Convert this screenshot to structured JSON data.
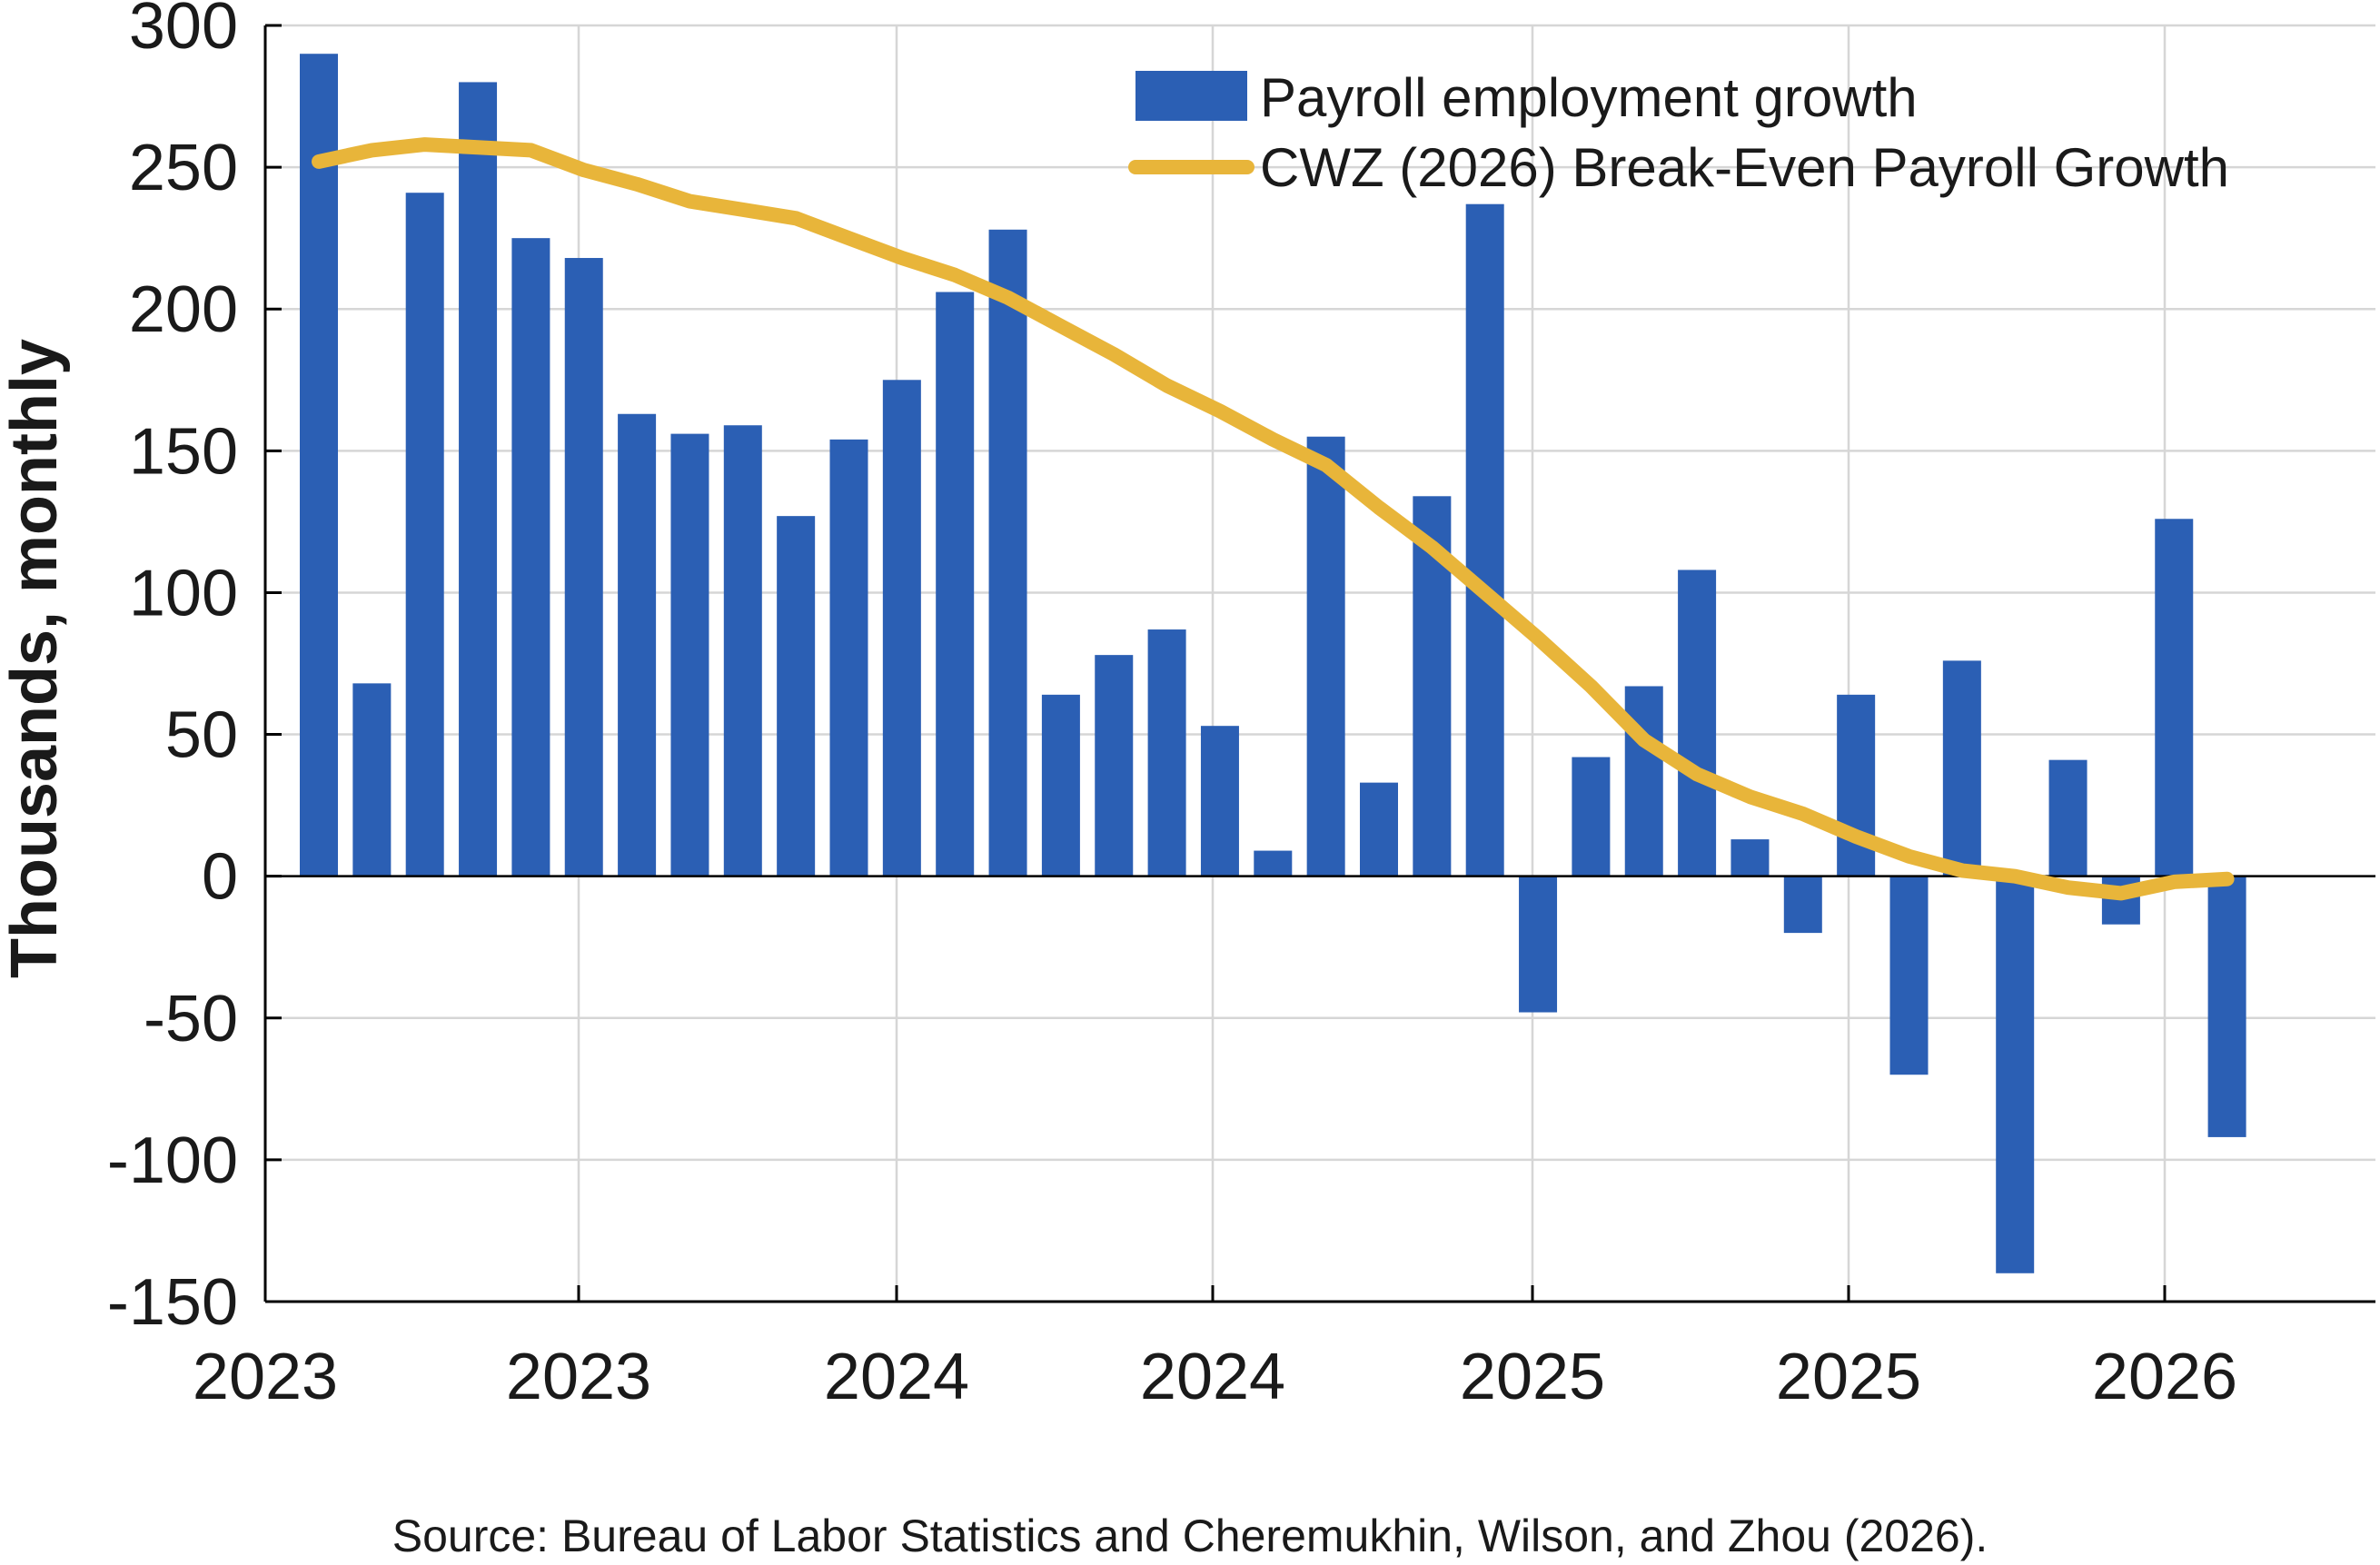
{
  "chart_data": {
    "type": "bar",
    "ylabel": "Thousands, monthly",
    "ylim": [
      -150,
      300
    ],
    "yticks": [
      -150,
      -100,
      -50,
      0,
      50,
      100,
      150,
      200,
      250,
      300
    ],
    "ytick_labels": [
      "-150",
      "-100",
      "-50",
      "0",
      "50",
      "100",
      "150",
      "200",
      "250",
      "300"
    ],
    "xtick_labels": [
      "2023",
      "2023",
      "2024",
      "2024",
      "2025",
      "2025",
      "2026"
    ],
    "grid": true,
    "legend_position": "top-right",
    "series": [
      {
        "name": "Payroll employment growth",
        "type": "bar",
        "color": "#2b5fb4",
        "values": [
          290,
          68,
          241,
          280,
          225,
          218,
          163,
          156,
          159,
          127,
          154,
          175,
          206,
          228,
          64,
          78,
          87,
          53,
          9,
          155,
          33,
          134,
          237,
          -48,
          42,
          67,
          108,
          13,
          -20,
          64,
          -70,
          76,
          -140,
          41,
          -17,
          126,
          -92
        ]
      },
      {
        "name": "CWZ (2026) Break-Even Payroll Growth",
        "type": "line",
        "color": "#e8b53a",
        "values": [
          252,
          256,
          258,
          257,
          256,
          249,
          244,
          238,
          235,
          232,
          225,
          218,
          212,
          204,
          194,
          184,
          173,
          164,
          154,
          145,
          130,
          116,
          100,
          84,
          67,
          48,
          36,
          28,
          22,
          14,
          7,
          2,
          0,
          -4,
          -6,
          -2,
          -1
        ]
      }
    ]
  },
  "source": "Source: Bureau of Labor Statistics and Cheremukhin, Wilson, and Zhou (2026)."
}
